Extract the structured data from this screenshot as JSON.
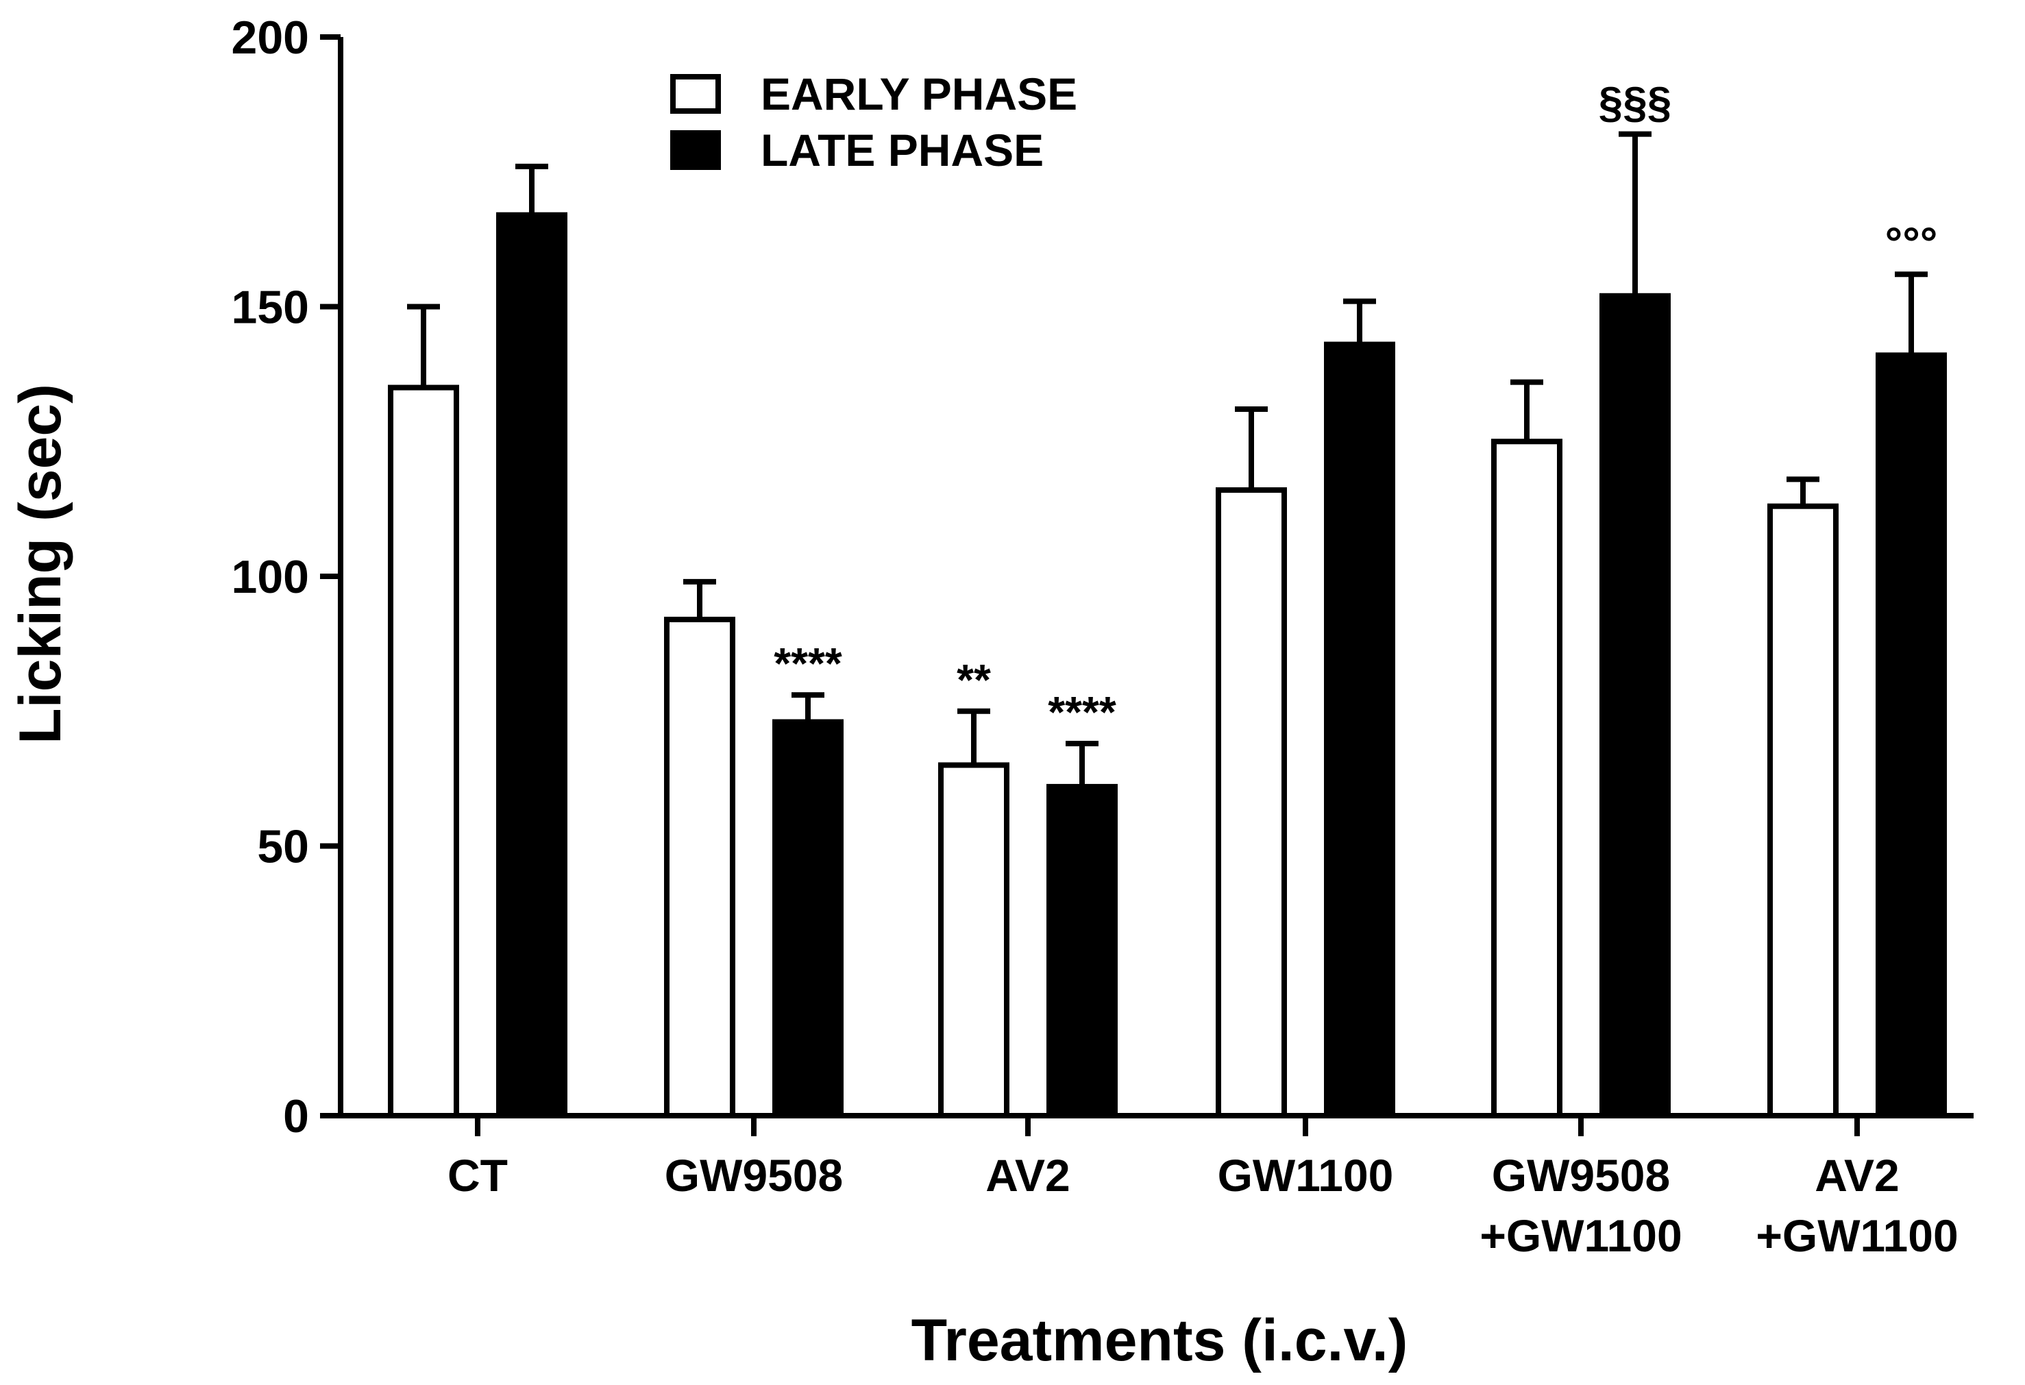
{
  "chart_data": {
    "type": "bar",
    "title": "",
    "xlabel": "Treatments (i.c.v.)",
    "ylabel": "Licking (sec)",
    "ylim": [
      0,
      200
    ],
    "yticks": [
      0,
      50,
      100,
      150,
      200
    ],
    "categories": [
      [
        "CT"
      ],
      [
        "GW9508"
      ],
      [
        "AV2"
      ],
      [
        "GW1100"
      ],
      [
        "GW9508",
        "+GW1100"
      ],
      [
        "AV2",
        "+GW1100"
      ]
    ],
    "series": [
      {
        "name": "EARLY PHASE",
        "fill": "#ffffff",
        "values": [
          135,
          92,
          65,
          116,
          125,
          113
        ],
        "errors": [
          15,
          7,
          10,
          15,
          11,
          5
        ],
        "annotations": [
          "",
          "",
          "**",
          "",
          "",
          ""
        ]
      },
      {
        "name": "LATE PHASE",
        "fill": "#000000",
        "values": [
          167,
          73,
          61,
          143,
          152,
          141
        ],
        "errors": [
          9,
          5,
          8,
          8,
          30,
          15
        ],
        "annotations": [
          "",
          "****",
          "****",
          "",
          "§§§",
          "°°°"
        ]
      }
    ],
    "legend_position": "top-left",
    "grid": false
  }
}
